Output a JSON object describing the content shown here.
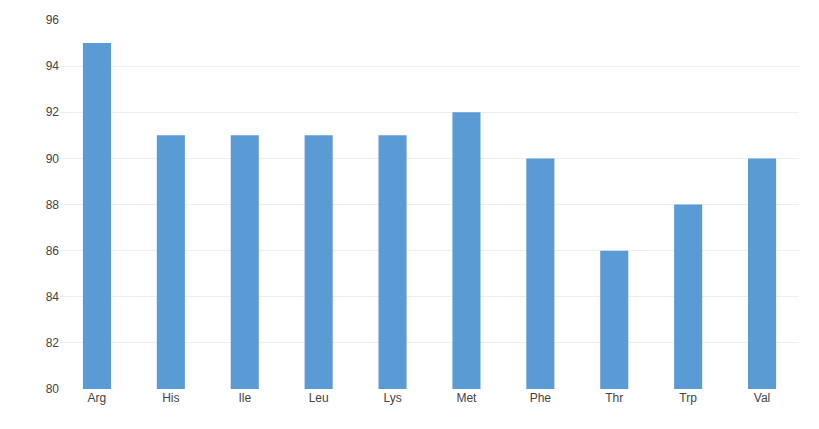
{
  "chart_data": {
    "type": "bar",
    "categories": [
      "Arg",
      "His",
      "Ile",
      "Leu",
      "Lys",
      "Met",
      "Phe",
      "Thr",
      "Trp",
      "Val"
    ],
    "values": [
      95,
      91,
      91,
      91,
      91,
      92,
      90,
      86,
      88,
      90
    ],
    "color": "#5b9bd5",
    "ylim": [
      80,
      96
    ],
    "yticks": [
      80,
      82,
      84,
      86,
      88,
      90,
      92,
      94,
      96
    ],
    "grid": true
  }
}
